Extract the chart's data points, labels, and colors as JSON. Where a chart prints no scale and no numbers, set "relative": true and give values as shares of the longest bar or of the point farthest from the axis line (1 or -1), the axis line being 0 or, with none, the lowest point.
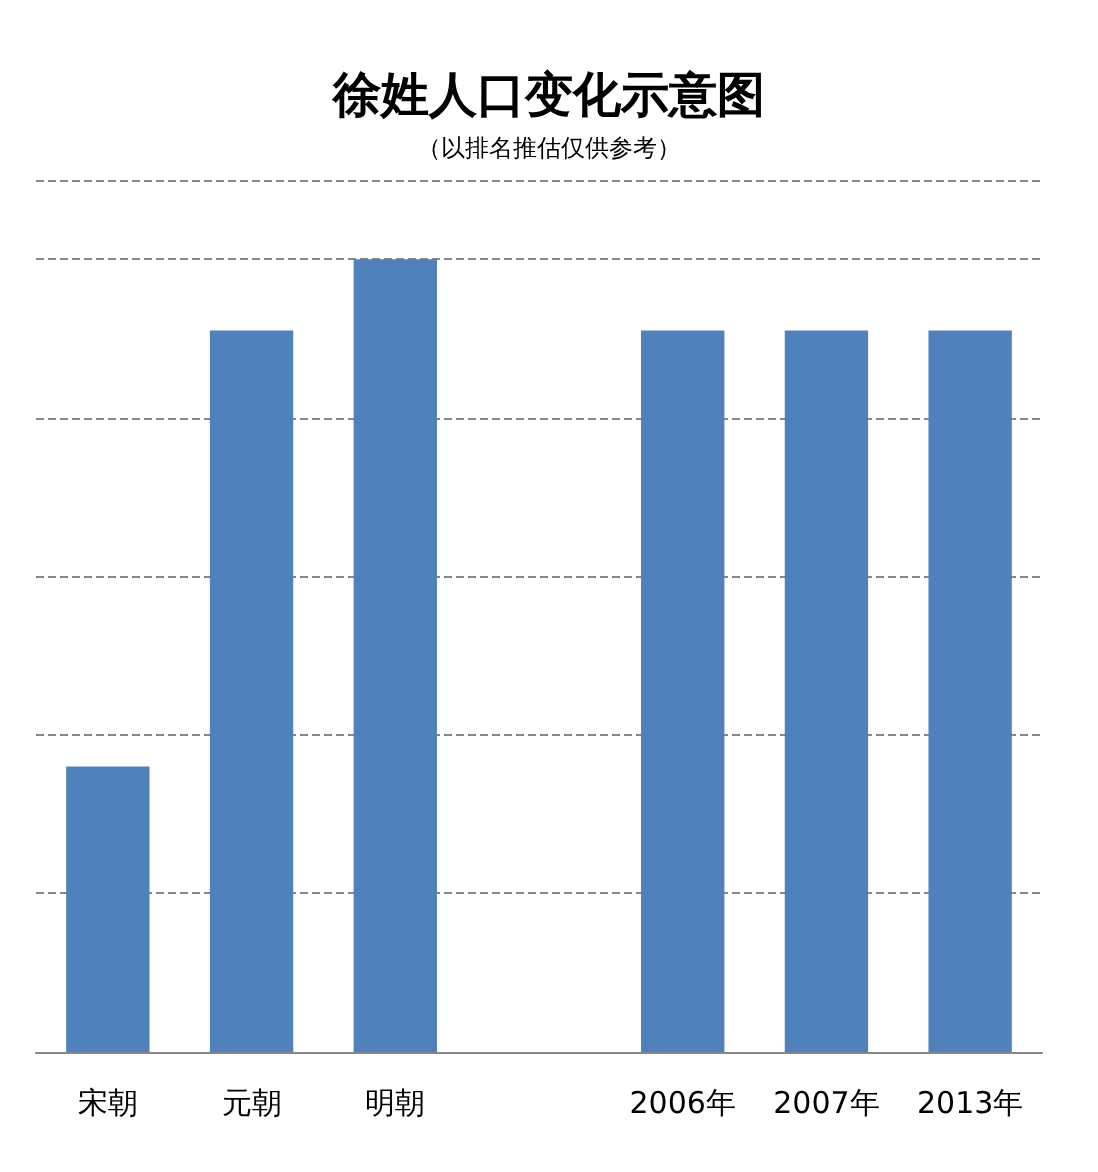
{
  "chart_data": {
    "type": "bar",
    "title": "徐姓人口变化示意图",
    "subtitle": "（以排名推估仅供参考）",
    "categories": [
      "宋朝",
      "元朝",
      "明朝",
      null,
      "2006年",
      "2007年",
      "2013年"
    ],
    "values": [
      0.36,
      0.91,
      1,
      null,
      0.91,
      0.91,
      0.91
    ],
    "color": "#4f81bd",
    "relative": true,
    "grid": "y"
  }
}
